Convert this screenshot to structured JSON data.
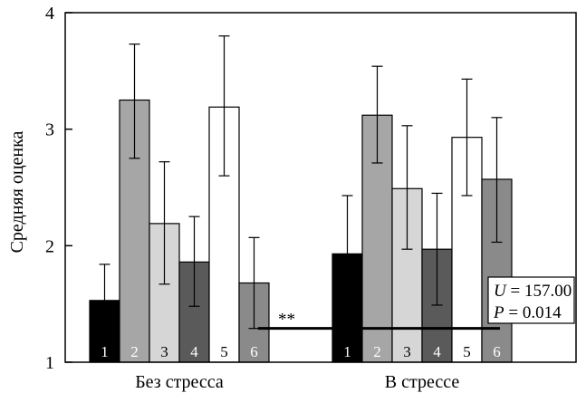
{
  "chart_data": {
    "type": "bar",
    "ylabel": "Средняя оценка",
    "ylim": [
      1,
      4
    ],
    "yticks": [
      1,
      2,
      3,
      4
    ],
    "groups": [
      {
        "label": "Без стресса",
        "bars": [
          {
            "num": "1",
            "value": 1.53,
            "err_low": 1.22,
            "err_high": 1.84,
            "color": "#000000",
            "text_color": "#ffffff"
          },
          {
            "num": "2",
            "value": 3.25,
            "err_low": 2.75,
            "err_high": 3.73,
            "color": "#a6a6a6",
            "text_color": "#ffffff"
          },
          {
            "num": "3",
            "value": 2.19,
            "err_low": 1.67,
            "err_high": 2.72,
            "color": "#d6d6d6",
            "text_color": "#000000"
          },
          {
            "num": "4",
            "value": 1.86,
            "err_low": 1.48,
            "err_high": 2.25,
            "color": "#5a5a5a",
            "text_color": "#ffffff"
          },
          {
            "num": "5",
            "value": 3.19,
            "err_low": 2.6,
            "err_high": 3.8,
            "color": "#ffffff",
            "text_color": "#000000"
          },
          {
            "num": "6",
            "value": 1.68,
            "err_low": 1.29,
            "err_high": 2.07,
            "color": "#8a8a8a",
            "text_color": "#ffffff"
          }
        ]
      },
      {
        "label": "В стрессе",
        "bars": [
          {
            "num": "1",
            "value": 1.93,
            "err_low": 1.43,
            "err_high": 2.43,
            "color": "#000000",
            "text_color": "#ffffff"
          },
          {
            "num": "2",
            "value": 3.12,
            "err_low": 2.71,
            "err_high": 3.54,
            "color": "#a6a6a6",
            "text_color": "#ffffff"
          },
          {
            "num": "3",
            "value": 2.49,
            "err_low": 1.97,
            "err_high": 3.03,
            "color": "#d6d6d6",
            "text_color": "#000000"
          },
          {
            "num": "4",
            "value": 1.97,
            "err_low": 1.49,
            "err_high": 2.45,
            "color": "#5a5a5a",
            "text_color": "#ffffff"
          },
          {
            "num": "5",
            "value": 2.93,
            "err_low": 2.43,
            "err_high": 3.43,
            "color": "#ffffff",
            "text_color": "#000000"
          },
          {
            "num": "6",
            "value": 2.57,
            "err_low": 2.03,
            "err_high": 3.1,
            "color": "#8a8a8a",
            "text_color": "#ffffff"
          }
        ]
      }
    ],
    "comparison": {
      "y": 1.29,
      "label": "**",
      "stat_u": "U = 157.00",
      "stat_p": "P = 0.014"
    }
  }
}
